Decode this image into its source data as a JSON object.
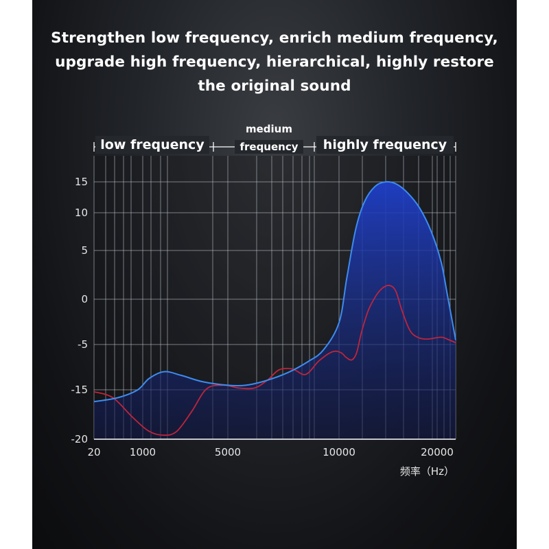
{
  "headline": {
    "line1": "Strengthen low frequency, enrich medium frequency,",
    "line2": "upgrade high frequency, hierarchical, highly restore",
    "line3": "the original sound"
  },
  "chart_data": {
    "type": "area",
    "band_labels": {
      "low": "low frequency",
      "medium_line1": "medium",
      "medium_line2": "frequency",
      "high": "highly frequency"
    },
    "xlabel": "频率（Hz）",
    "x_ticks": [
      {
        "label": "20",
        "value": 20
      },
      {
        "label": "1000",
        "value": 1000
      },
      {
        "label": "5000",
        "value": 5000
      },
      {
        "label": "10000",
        "value": 10000
      },
      {
        "label": "20000",
        "value": 20000
      }
    ],
    "y_ticks": [
      {
        "label": "15",
        "value": 15
      },
      {
        "label": "10",
        "value": 10
      },
      {
        "label": "5",
        "value": 5
      },
      {
        "label": "0",
        "value": 0
      },
      {
        "label": "-5",
        "value": -5
      },
      {
        "label": "-15",
        "value": -15
      },
      {
        "label": "-20",
        "value": -20
      }
    ],
    "series": [
      {
        "color": "#3d8cf0",
        "fill": true,
        "points": [
          [
            20,
            -16.2
          ],
          [
            500,
            -15.8
          ],
          [
            900,
            -15
          ],
          [
            1300,
            -12.5
          ],
          [
            2000,
            -11
          ],
          [
            2800,
            -11.8
          ],
          [
            3800,
            -13.2
          ],
          [
            5000,
            -14
          ],
          [
            5800,
            -14
          ],
          [
            6700,
            -13
          ],
          [
            7700,
            -11.2
          ],
          [
            8600,
            -8.8
          ],
          [
            9300,
            -6.2
          ],
          [
            10000,
            -2.6
          ],
          [
            10800,
            2.2
          ],
          [
            11700,
            7.8
          ],
          [
            12600,
            11.8
          ],
          [
            13700,
            14.3
          ],
          [
            14800,
            15
          ],
          [
            15900,
            14.6
          ],
          [
            17000,
            13.2
          ],
          [
            18200,
            10.8
          ],
          [
            19400,
            7.5
          ],
          [
            20500,
            3.8
          ],
          [
            21300,
            0.3
          ],
          [
            22300,
            -4.5
          ]
        ]
      },
      {
        "color": "#c0243c",
        "fill": false,
        "points": [
          [
            20,
            -15.2
          ],
          [
            400,
            -15.8
          ],
          [
            800,
            -17.8
          ],
          [
            1300,
            -19.2
          ],
          [
            2000,
            -19.6
          ],
          [
            2600,
            -19.2
          ],
          [
            3300,
            -17.2
          ],
          [
            4000,
            -14.8
          ],
          [
            4800,
            -14
          ],
          [
            5500,
            -14.6
          ],
          [
            6200,
            -14.6
          ],
          [
            6800,
            -12.8
          ],
          [
            7300,
            -10.6
          ],
          [
            7900,
            -10.4
          ],
          [
            8500,
            -11.6
          ],
          [
            9100,
            -8.6
          ],
          [
            9700,
            -6.6
          ],
          [
            10200,
            -6.8
          ],
          [
            10700,
            -7.8
          ],
          [
            11300,
            -8.4
          ],
          [
            11800,
            -6.8
          ],
          [
            12300,
            -3.6
          ],
          [
            13000,
            -1.2
          ],
          [
            13800,
            0.4
          ],
          [
            14500,
            1.2
          ],
          [
            15200,
            1.4
          ],
          [
            15800,
            0.8
          ],
          [
            16400,
            -1.2
          ],
          [
            17200,
            -3.4
          ],
          [
            18000,
            -4.2
          ],
          [
            19000,
            -4.4
          ],
          [
            20500,
            -4.2
          ],
          [
            21500,
            -4.5
          ],
          [
            22300,
            -4.8
          ]
        ]
      }
    ]
  }
}
